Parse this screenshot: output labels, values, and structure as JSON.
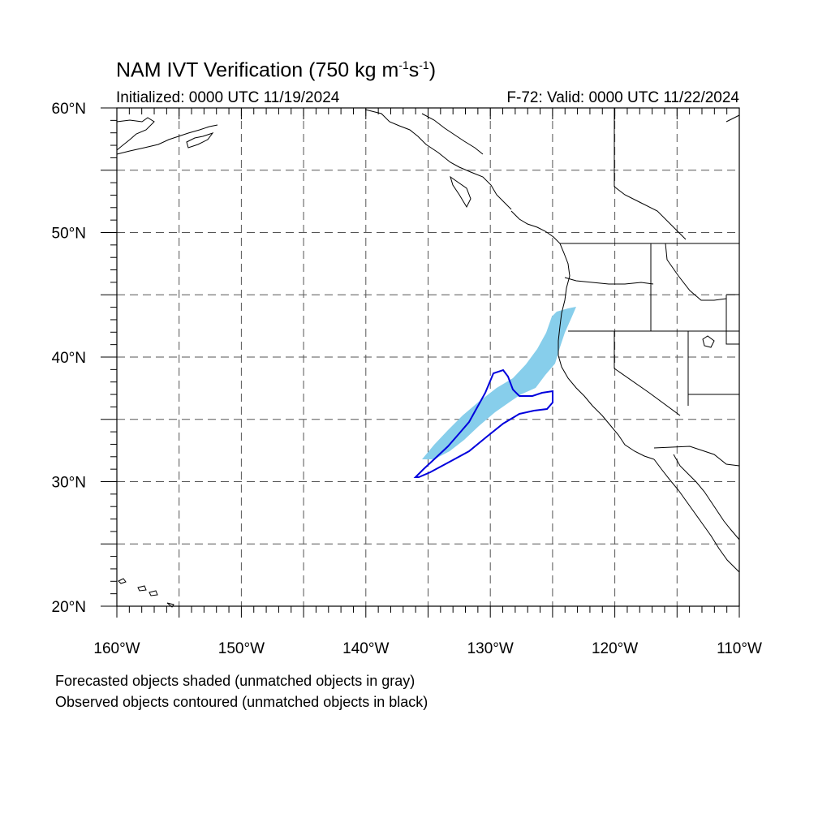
{
  "title": {
    "main": "NAM IVT Verification (750 kg m",
    "exp1": "-1",
    "mid": "s",
    "exp2": "-1",
    "tail": ")"
  },
  "initialized": "Initialized: 0000 UTC 11/19/2024",
  "valid": "F-72: Valid: 0000 UTC 11/22/2024",
  "map": {
    "lon_range": [
      -160,
      -110
    ],
    "lat_range": [
      20,
      60
    ],
    "lat_labels": [
      {
        "value": 60,
        "text": "60°N"
      },
      {
        "value": 50,
        "text": "50°N"
      },
      {
        "value": 40,
        "text": "40°N"
      },
      {
        "value": 30,
        "text": "30°N"
      },
      {
        "value": 20,
        "text": "20°N"
      }
    ],
    "lon_labels": [
      {
        "value": -160,
        "text": "160°W"
      },
      {
        "value": -150,
        "text": "150°W"
      },
      {
        "value": -140,
        "text": "140°W"
      },
      {
        "value": -130,
        "text": "130°W"
      },
      {
        "value": -120,
        "text": "120°W"
      },
      {
        "value": -110,
        "text": "110°W"
      }
    ],
    "gridlines_dashed": true,
    "colors": {
      "forecast_fill": "#87ceeb",
      "observed_contour": "#0000dd",
      "coastline": "#000000",
      "grid": "#555555"
    }
  },
  "notes": [
    "Forecasted objects shaded (unmatched objects in gray)",
    "Observed objects contoured (unmatched objects in black)"
  ]
}
